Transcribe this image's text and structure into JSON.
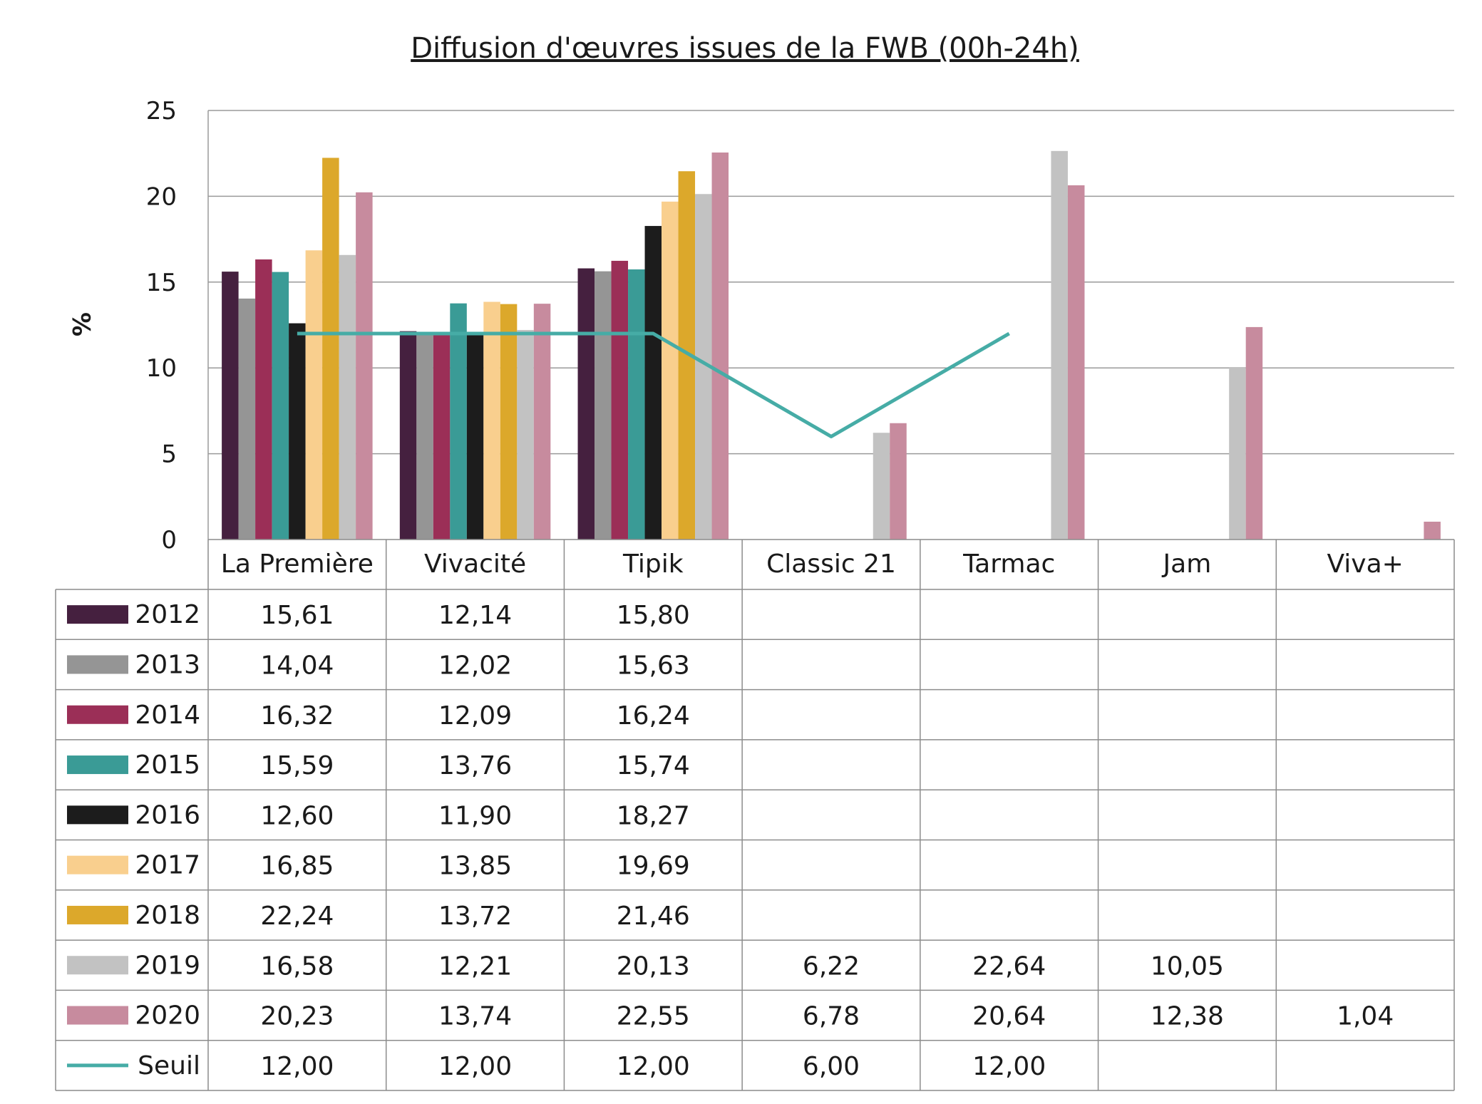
{
  "chart_data": {
    "type": "bar",
    "title": "Diffusion d'œuvres issues de la FWB (00h-24h)",
    "xlabel": "",
    "ylabel": "%",
    "ylim": [
      0,
      25
    ],
    "yticks": [
      "0",
      "5",
      "10",
      "15",
      "20",
      "25"
    ],
    "grid": true,
    "legend": "data-table",
    "categories": [
      "La Première",
      "Vivacité",
      "Tipik",
      "Classic 21",
      "Tarmac",
      "Jam",
      "Viva+"
    ],
    "series": [
      {
        "name": "2012",
        "type": "bar",
        "color": "#45203f",
        "values": [
          15.61,
          12.14,
          15.8,
          null,
          null,
          null,
          null
        ],
        "labels": [
          "15,61",
          "12,14",
          "15,80",
          "",
          "",
          "",
          ""
        ]
      },
      {
        "name": "2013",
        "type": "bar",
        "color": "#959595",
        "values": [
          14.04,
          12.02,
          15.63,
          null,
          null,
          null,
          null
        ],
        "labels": [
          "14,04",
          "12,02",
          "15,63",
          "",
          "",
          "",
          ""
        ]
      },
      {
        "name": "2014",
        "type": "bar",
        "color": "#9b2f57",
        "values": [
          16.32,
          12.09,
          16.24,
          null,
          null,
          null,
          null
        ],
        "labels": [
          "16,32",
          "12,09",
          "16,24",
          "",
          "",
          "",
          ""
        ]
      },
      {
        "name": "2015",
        "type": "bar",
        "color": "#3a9b96",
        "values": [
          15.59,
          13.76,
          15.74,
          null,
          null,
          null,
          null
        ],
        "labels": [
          "15,59",
          "13,76",
          "15,74",
          "",
          "",
          "",
          ""
        ]
      },
      {
        "name": "2016",
        "type": "bar",
        "color": "#1c1c1c",
        "values": [
          12.6,
          11.9,
          18.27,
          null,
          null,
          null,
          null
        ],
        "labels": [
          "12,60",
          "11,90",
          "18,27",
          "",
          "",
          "",
          ""
        ]
      },
      {
        "name": "2017",
        "type": "bar",
        "color": "#f9cf8e",
        "values": [
          16.85,
          13.85,
          19.69,
          null,
          null,
          null,
          null
        ],
        "labels": [
          "16,85",
          "13,85",
          "19,69",
          "",
          "",
          "",
          ""
        ]
      },
      {
        "name": "2018",
        "type": "bar",
        "color": "#dca82b",
        "values": [
          22.24,
          13.72,
          21.46,
          null,
          null,
          null,
          null
        ],
        "labels": [
          "22,24",
          "13,72",
          "21,46",
          "",
          "",
          "",
          ""
        ]
      },
      {
        "name": "2019",
        "type": "bar",
        "color": "#c2c2c2",
        "values": [
          16.58,
          12.21,
          20.13,
          6.22,
          22.64,
          10.05,
          null
        ],
        "labels": [
          "16,58",
          "12,21",
          "20,13",
          "6,22",
          "22,64",
          "10,05",
          ""
        ]
      },
      {
        "name": "2020",
        "type": "bar",
        "color": "#c78b9e",
        "values": [
          20.23,
          13.74,
          22.55,
          6.78,
          20.64,
          12.38,
          1.04
        ],
        "labels": [
          "20,23",
          "13,74",
          "22,55",
          "6,78",
          "20,64",
          "12,38",
          "1,04"
        ]
      },
      {
        "name": "Seuil",
        "type": "line",
        "color": "#46aca6",
        "values": [
          12.0,
          12.0,
          12.0,
          6.0,
          12.0,
          null,
          null
        ],
        "labels": [
          "12,00",
          "12,00",
          "12,00",
          "6,00",
          "12,00",
          "",
          ""
        ]
      }
    ]
  }
}
